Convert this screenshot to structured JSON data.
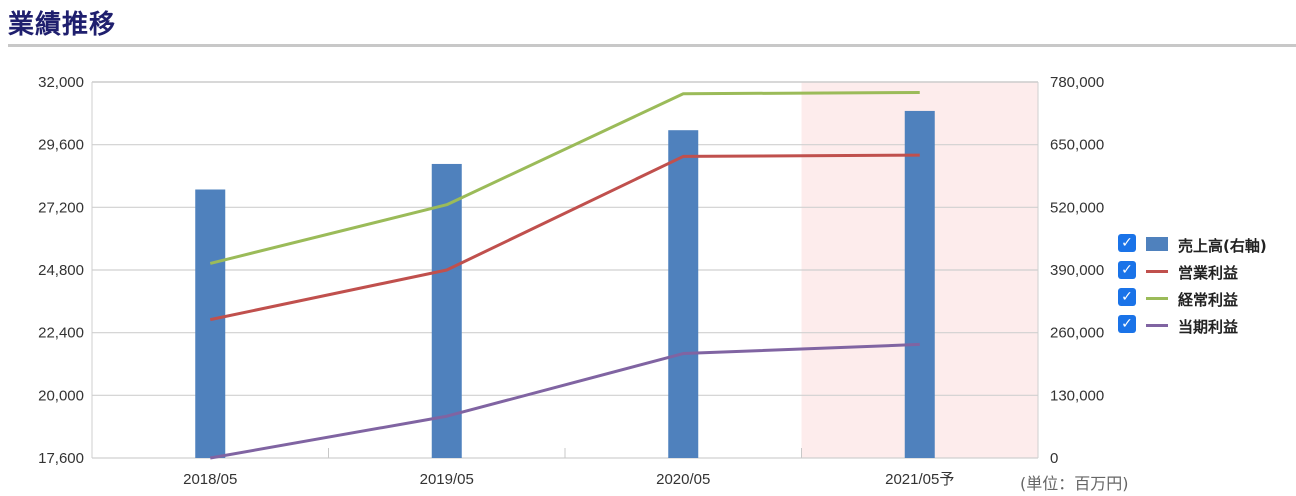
{
  "title": "業績推移",
  "unit": "(単位：百万円)",
  "chart_data": {
    "type": "bar",
    "categories": [
      "2018/05",
      "2019/05",
      "2020/05",
      "2021/05予"
    ],
    "forecast_index": 3,
    "y_left": {
      "ticks": [
        17600,
        20000,
        22400,
        24800,
        27200,
        29600,
        32000
      ],
      "ylim": [
        17600,
        32000
      ]
    },
    "y_right": {
      "ticks": [
        0,
        130000,
        260000,
        390000,
        520000,
        650000,
        780000
      ],
      "ylim": [
        0,
        780000
      ]
    },
    "series": [
      {
        "name": "売上高(右軸)",
        "kind": "bar",
        "axis": "right",
        "color": "#4f81bd",
        "values": [
          557000,
          610000,
          680000,
          720000
        ]
      },
      {
        "name": "営業利益",
        "kind": "line",
        "axis": "left",
        "color": "#c0504d",
        "values": [
          22900,
          24800,
          29150,
          29200
        ]
      },
      {
        "name": "経常利益",
        "kind": "line",
        "axis": "left",
        "color": "#9bbb59",
        "values": [
          25050,
          27300,
          31550,
          31600
        ]
      },
      {
        "name": "当期利益",
        "kind": "line",
        "axis": "left",
        "color": "#8064a2",
        "values": [
          17600,
          19200,
          21600,
          21950
        ]
      }
    ],
    "grid": true,
    "legend": "right"
  }
}
